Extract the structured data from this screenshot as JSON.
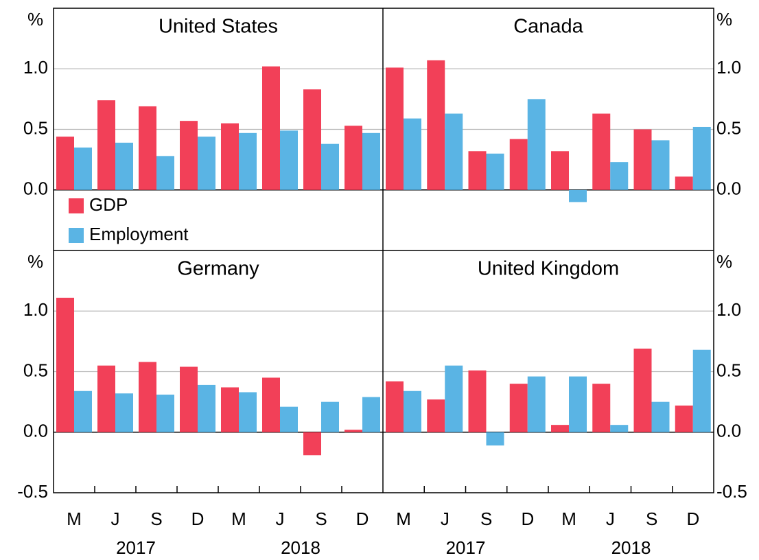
{
  "chart_data": [
    {
      "type": "bar",
      "title": "United States",
      "ylabel": "%",
      "legend": "bottom-left",
      "ylim": [
        -0.5,
        1.5
      ],
      "yticks": [
        {
          "value": 0,
          "label": "0.0"
        },
        0.5,
        {
          "value": 1,
          "label": "1.0"
        }
      ],
      "series": [
        {
          "name": "GDP",
          "color": "#f24058",
          "values": [
            0.44,
            0.74,
            0.69,
            0.57,
            0.55,
            1.02,
            0.83,
            0.53
          ]
        },
        {
          "name": "Employment",
          "color": "#5ab4e4",
          "values": [
            0.35,
            0.39,
            0.28,
            0.44,
            0.47,
            0.49,
            0.38,
            0.47
          ]
        }
      ]
    },
    {
      "type": "bar",
      "title": "Canada",
      "ylabel": "%",
      "ylim": [
        -0.5,
        1.5
      ],
      "yticks": [
        {
          "value": 0,
          "label": "0.0"
        },
        0.5,
        {
          "value": 1,
          "label": "1.0"
        }
      ],
      "series": [
        {
          "name": "GDP",
          "color": "#f24058",
          "values": [
            1.01,
            1.07,
            0.32,
            0.42,
            0.32,
            0.63,
            0.5,
            0.11
          ]
        },
        {
          "name": "Employment",
          "color": "#5ab4e4",
          "values": [
            0.59,
            0.63,
            0.3,
            0.75,
            -0.1,
            0.23,
            0.41,
            0.52
          ]
        }
      ]
    },
    {
      "type": "bar",
      "title": "Germany",
      "ylabel": "%",
      "categories": [
        "M",
        "J",
        "S",
        "D",
        "M",
        "J",
        "S",
        "D"
      ],
      "year_labels": [
        "2017",
        "2018"
      ],
      "ylim": [
        -0.5,
        1.5
      ],
      "yticks": [
        -0.5,
        {
          "value": 0,
          "label": "0.0"
        },
        0.5,
        {
          "value": 1,
          "label": "1.0"
        }
      ],
      "series": [
        {
          "name": "GDP",
          "color": "#f24058",
          "values": [
            1.11,
            0.55,
            0.58,
            0.54,
            0.37,
            0.45,
            -0.19,
            0.02
          ]
        },
        {
          "name": "Employment",
          "color": "#5ab4e4",
          "values": [
            0.34,
            0.32,
            0.31,
            0.39,
            0.33,
            0.21,
            0.25,
            0.29
          ]
        }
      ]
    },
    {
      "type": "bar",
      "title": "United Kingdom",
      "ylabel": "%",
      "categories": [
        "M",
        "J",
        "S",
        "D",
        "M",
        "J",
        "S",
        "D"
      ],
      "year_labels": [
        "2017",
        "2018"
      ],
      "ylim": [
        -0.5,
        1.5
      ],
      "yticks": [
        -0.5,
        {
          "value": 0,
          "label": "0.0"
        },
        0.5,
        {
          "value": 1,
          "label": "1.0"
        }
      ],
      "series": [
        {
          "name": "GDP",
          "color": "#f24058",
          "values": [
            0.42,
            0.27,
            0.51,
            0.4,
            0.06,
            0.4,
            0.69,
            0.22
          ]
        },
        {
          "name": "Employment",
          "color": "#5ab4e4",
          "values": [
            0.34,
            0.55,
            -0.11,
            0.46,
            0.46,
            0.06,
            0.25,
            0.68
          ]
        }
      ]
    }
  ]
}
